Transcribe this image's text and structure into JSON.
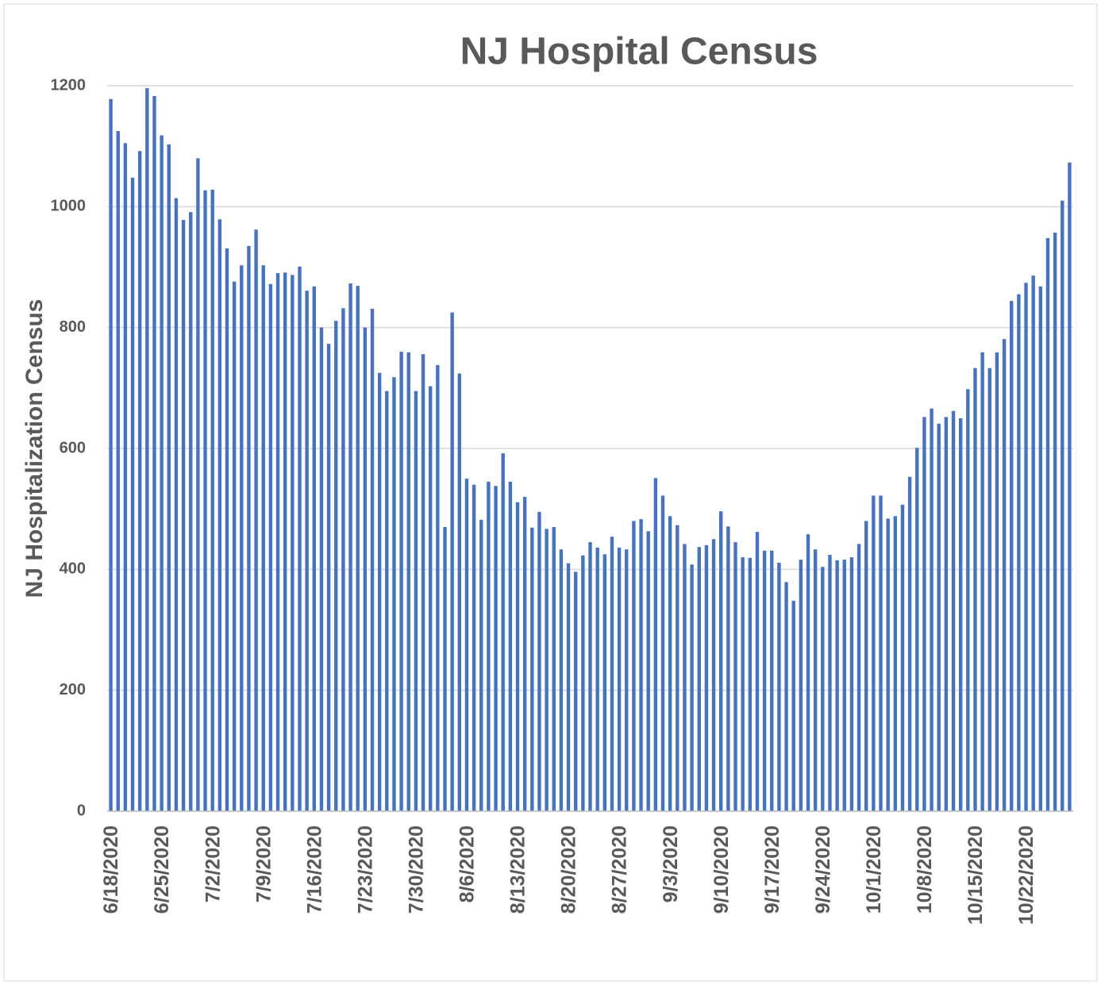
{
  "chart_data": {
    "type": "bar",
    "title": "NJ Hospital Census",
    "ylabel": "NJ Hospitalization Census",
    "categories": [
      "6/18/2020",
      null,
      null,
      null,
      null,
      null,
      null,
      "6/25/2020",
      null,
      null,
      null,
      null,
      null,
      null,
      "7/2/2020",
      null,
      null,
      null,
      null,
      null,
      null,
      "7/9/2020",
      null,
      null,
      null,
      null,
      null,
      null,
      "7/16/2020",
      null,
      null,
      null,
      null,
      null,
      null,
      "7/23/2020",
      null,
      null,
      null,
      null,
      null,
      null,
      "7/30/2020",
      null,
      null,
      null,
      null,
      null,
      null,
      "8/6/2020",
      null,
      null,
      null,
      null,
      null,
      null,
      "8/13/2020",
      null,
      null,
      null,
      null,
      null,
      null,
      "8/20/2020",
      null,
      null,
      null,
      null,
      null,
      null,
      "8/27/2020",
      null,
      null,
      null,
      null,
      null,
      null,
      "9/3/2020",
      null,
      null,
      null,
      null,
      null,
      null,
      "9/10/2020",
      null,
      null,
      null,
      null,
      null,
      null,
      "9/17/2020",
      null,
      null,
      null,
      null,
      null,
      null,
      "9/24/2020",
      null,
      null,
      null,
      null,
      null,
      null,
      "10/1/2020",
      null,
      null,
      null,
      null,
      null,
      null,
      "10/8/2020",
      null,
      null,
      null,
      null,
      null,
      null,
      "10/15/2020",
      null,
      null,
      null,
      null,
      null,
      null,
      "10/22/2020",
      null,
      null,
      null,
      null,
      null,
      null
    ],
    "values": [
      1178,
      1125,
      1105,
      1048,
      1092,
      1196,
      1183,
      1118,
      1103,
      1014,
      978,
      991,
      1080,
      1027,
      1028,
      979,
      931,
      876,
      903,
      935,
      962,
      903,
      872,
      890,
      891,
      887,
      901,
      861,
      868,
      800,
      773,
      811,
      832,
      873,
      869,
      800,
      831,
      725,
      695,
      718,
      760,
      759,
      695,
      756,
      703,
      738,
      470,
      825,
      724,
      550,
      540,
      482,
      545,
      538,
      592,
      545,
      511,
      520,
      469,
      495,
      467,
      470,
      433,
      410,
      396,
      423,
      445,
      436,
      425,
      454,
      436,
      433,
      480,
      483,
      463,
      551,
      522,
      488,
      473,
      442,
      408,
      437,
      440,
      450,
      496,
      471,
      445,
      420,
      419,
      462,
      431,
      431,
      411,
      379,
      348,
      416,
      458,
      433,
      404,
      424,
      415,
      416,
      420,
      442,
      480,
      522,
      522,
      484,
      488,
      507,
      553,
      601,
      652,
      666,
      641,
      652,
      662,
      650,
      698,
      733,
      759,
      733,
      759,
      781,
      844,
      855,
      874,
      886,
      868,
      948,
      957,
      1010,
      1073
    ],
    "color": "#4472c4",
    "ylim": [
      0,
      1200
    ],
    "yticks": [
      0,
      200,
      400,
      600,
      800,
      1000,
      1200
    ],
    "grid": true
  }
}
